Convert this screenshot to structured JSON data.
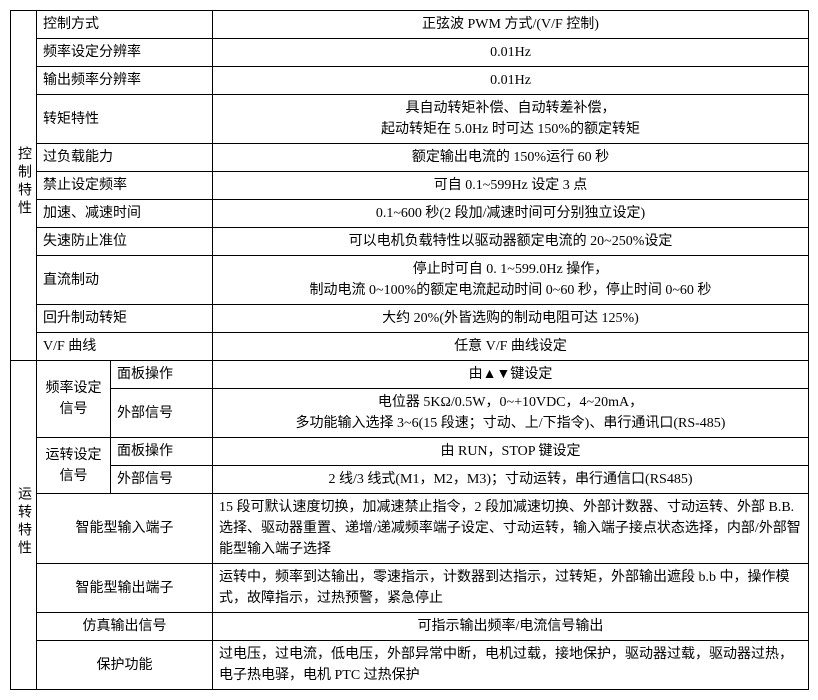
{
  "group_a": {
    "title": "控制特性"
  },
  "group_b": {
    "title": "运转特性"
  },
  "a": {
    "r1": {
      "label": "控制方式",
      "value": "正弦波 PWM 方式/(V/F 控制)"
    },
    "r2": {
      "label": "频率设定分辨率",
      "value": "0.01Hz"
    },
    "r3": {
      "label": "输出频率分辨率",
      "value": "0.01Hz"
    },
    "r4": {
      "label": "转矩特性",
      "value": "具自动转矩补偿、自动转差补偿，\n起动转矩在 5.0Hz 时可达 150%的额定转矩"
    },
    "r5": {
      "label": "过负载能力",
      "value": "额定输出电流的 150%运行 60 秒"
    },
    "r6": {
      "label": "禁止设定频率",
      "value": "可自 0.1~599Hz 设定 3 点"
    },
    "r7": {
      "label": "加速、减速时间",
      "value": "0.1~600 秒(2 段加/减速时间可分别独立设定)"
    },
    "r8": {
      "label": "失速防止准位",
      "value": "可以电机负载特性以驱动器额定电流的 20~250%设定"
    },
    "r9": {
      "label": "直流制动",
      "value": "停止时可自 0. 1~599.0Hz 操作，\n制动电流 0~100%的额定电流起动时间 0~60 秒，停止时间 0~60 秒"
    },
    "r10": {
      "label": "回升制动转矩",
      "value": "大约 20%(外皆选购的制动电阻可达 125%)"
    },
    "r11": {
      "label": "V/F 曲线",
      "value": "任意 V/F 曲线设定"
    }
  },
  "b": {
    "freq": {
      "label": "频率设定信号",
      "panel": {
        "label": "面板操作",
        "value": "由▲▼键设定"
      },
      "ext": {
        "label": "外部信号",
        "value": "电位器 5KΩ/0.5W，0~+10VDC，4~20mA，\n多功能输入选择 3~6(15 段速；寸动、上/下指令)、串行通讯口(RS-485)"
      }
    },
    "run": {
      "label": "运转设定信号",
      "panel": {
        "label": "面板操作",
        "value": "由 RUN，STOP 键设定"
      },
      "ext": {
        "label": "外部信号",
        "value": "2 线/3 线式(M1，M2，M3)；寸动运转，串行通信口(RS485)"
      }
    },
    "smart_in": {
      "label": "智能型输入端子",
      "value": "15 段可默认速度切换，加减速禁止指令，2 段加减速切换、外部计数器、寸动运转、外部 B.B.选择、驱动器重置、递增/递减频率端子设定、寸动运转，输入端子接点状态选择，内部/外部智能型输入端子选择"
    },
    "smart_out": {
      "label": "智能型输出端子",
      "value": "运转中，频率到达输出，零速指示，计数器到达指示，过转矩，外部输出遮段 b.b 中，操作模式，故障指示，过热预警，紧急停止"
    },
    "analog_out": {
      "label": "仿真输出信号",
      "value": "可指示输出频率/电流信号输出"
    },
    "protect": {
      "label": "保护功能",
      "value": "过电压，过电流，低电压，外部异常中断，电机过载，接地保护，驱动器过载，驱动器过热，电子热电驿，电机 PTC 过热保护"
    }
  }
}
